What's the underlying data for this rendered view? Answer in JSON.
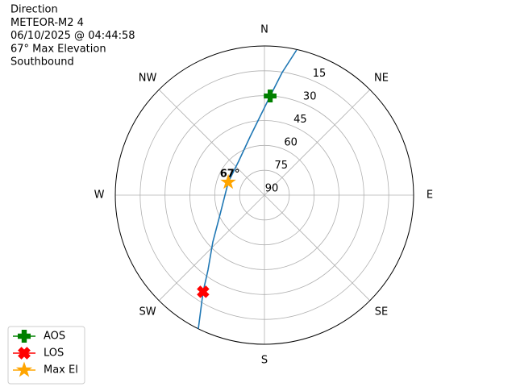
{
  "chart_data": {
    "type": "polar",
    "title": [
      "Direction",
      "METEOR-M2 4",
      "06/10/2025 @ 04:44:58",
      "67° Max Elevation",
      "Southbound"
    ],
    "thetaticks": [
      {
        "value": 0,
        "label": "N"
      },
      {
        "value": 45,
        "label": "NE"
      },
      {
        "value": 90,
        "label": "E"
      },
      {
        "value": 135,
        "label": "SE"
      },
      {
        "value": 180,
        "label": "S"
      },
      {
        "value": 225,
        "label": "SW"
      },
      {
        "value": 270,
        "label": "W"
      },
      {
        "value": 315,
        "label": "NW"
      }
    ],
    "rlim": [
      90,
      0
    ],
    "rticks": [
      15,
      30,
      45,
      60,
      75,
      90
    ],
    "grid": true,
    "track": {
      "color": "#1f77b4",
      "azimuth": [
        12.5,
        8.2,
        3.3,
        346,
        322.7,
        289.6,
        243.4,
        227.8,
        217,
        212.4,
        206.3
      ],
      "elevation": [
        0.3,
        15.3,
        30.1,
        53.9,
        64.3,
        66.8,
        59.5,
        48,
        33.4,
        20.9,
        0
      ]
    },
    "series": [
      {
        "name": "AOS",
        "color": "#008000",
        "marker": "plus",
        "azimuth": 3.3,
        "elevation": 30.1
      },
      {
        "name": "LOS",
        "color": "#ff0000",
        "marker": "x",
        "azimuth": 212.4,
        "elevation": 20.9
      },
      {
        "name": "Max El",
        "color": "#ffa500",
        "marker": "star",
        "azimuth": 289.6,
        "elevation": 66.8
      }
    ],
    "annotation": {
      "text": "67°",
      "azimuth": 289.6,
      "elevation": 66.8
    },
    "legend": "lower left"
  }
}
